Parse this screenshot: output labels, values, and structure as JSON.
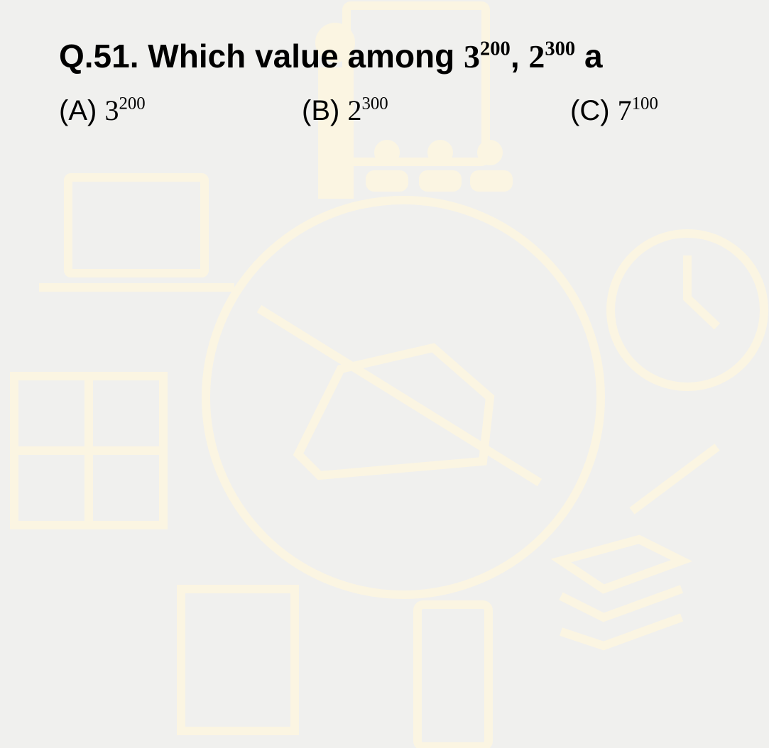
{
  "question": {
    "number": "Q.51.",
    "text": "Which value among",
    "terms": [
      {
        "base": "3",
        "exp": "200"
      },
      {
        "base": "2",
        "exp": "300"
      }
    ],
    "separator": ",",
    "trailing": "a"
  },
  "options": [
    {
      "label": "(A)",
      "base": "3",
      "exp": "200"
    },
    {
      "label": "(B)",
      "base": "2",
      "exp": "300"
    },
    {
      "label": "(C)",
      "base": "7",
      "exp": "100"
    }
  ]
}
